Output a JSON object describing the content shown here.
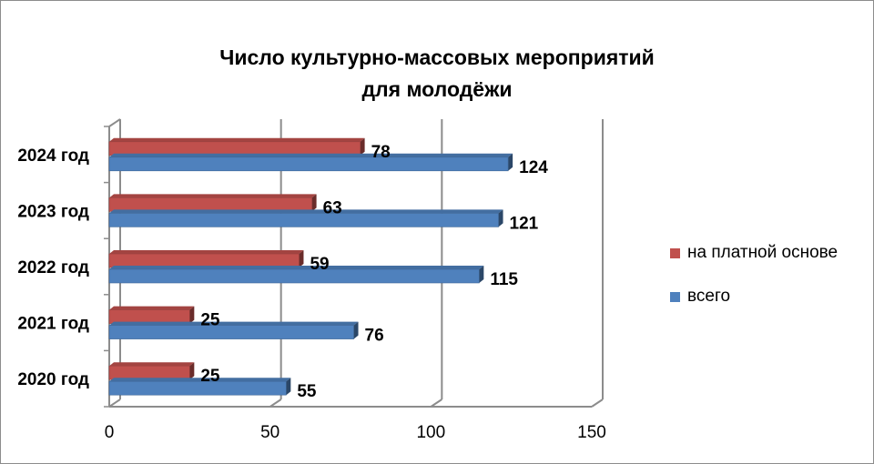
{
  "chart_data": {
    "type": "bar",
    "orientation": "horizontal",
    "title": [
      "Число культурно-массовых мероприятий",
      "для молодёжи"
    ],
    "categories": [
      "2024 год",
      "2023 год",
      "2022 год",
      "2021 год",
      "2020 год"
    ],
    "series": [
      {
        "name": "на платной основе",
        "color": "#c0504d",
        "values": [
          78,
          63,
          59,
          25,
          25
        ]
      },
      {
        "name": "всего",
        "color": "#4f81bd",
        "values": [
          124,
          121,
          115,
          76,
          55
        ]
      }
    ],
    "xlim": [
      0,
      150
    ],
    "xticks": [
      0,
      50,
      100,
      150
    ],
    "grid": true,
    "legend_position": "right"
  }
}
